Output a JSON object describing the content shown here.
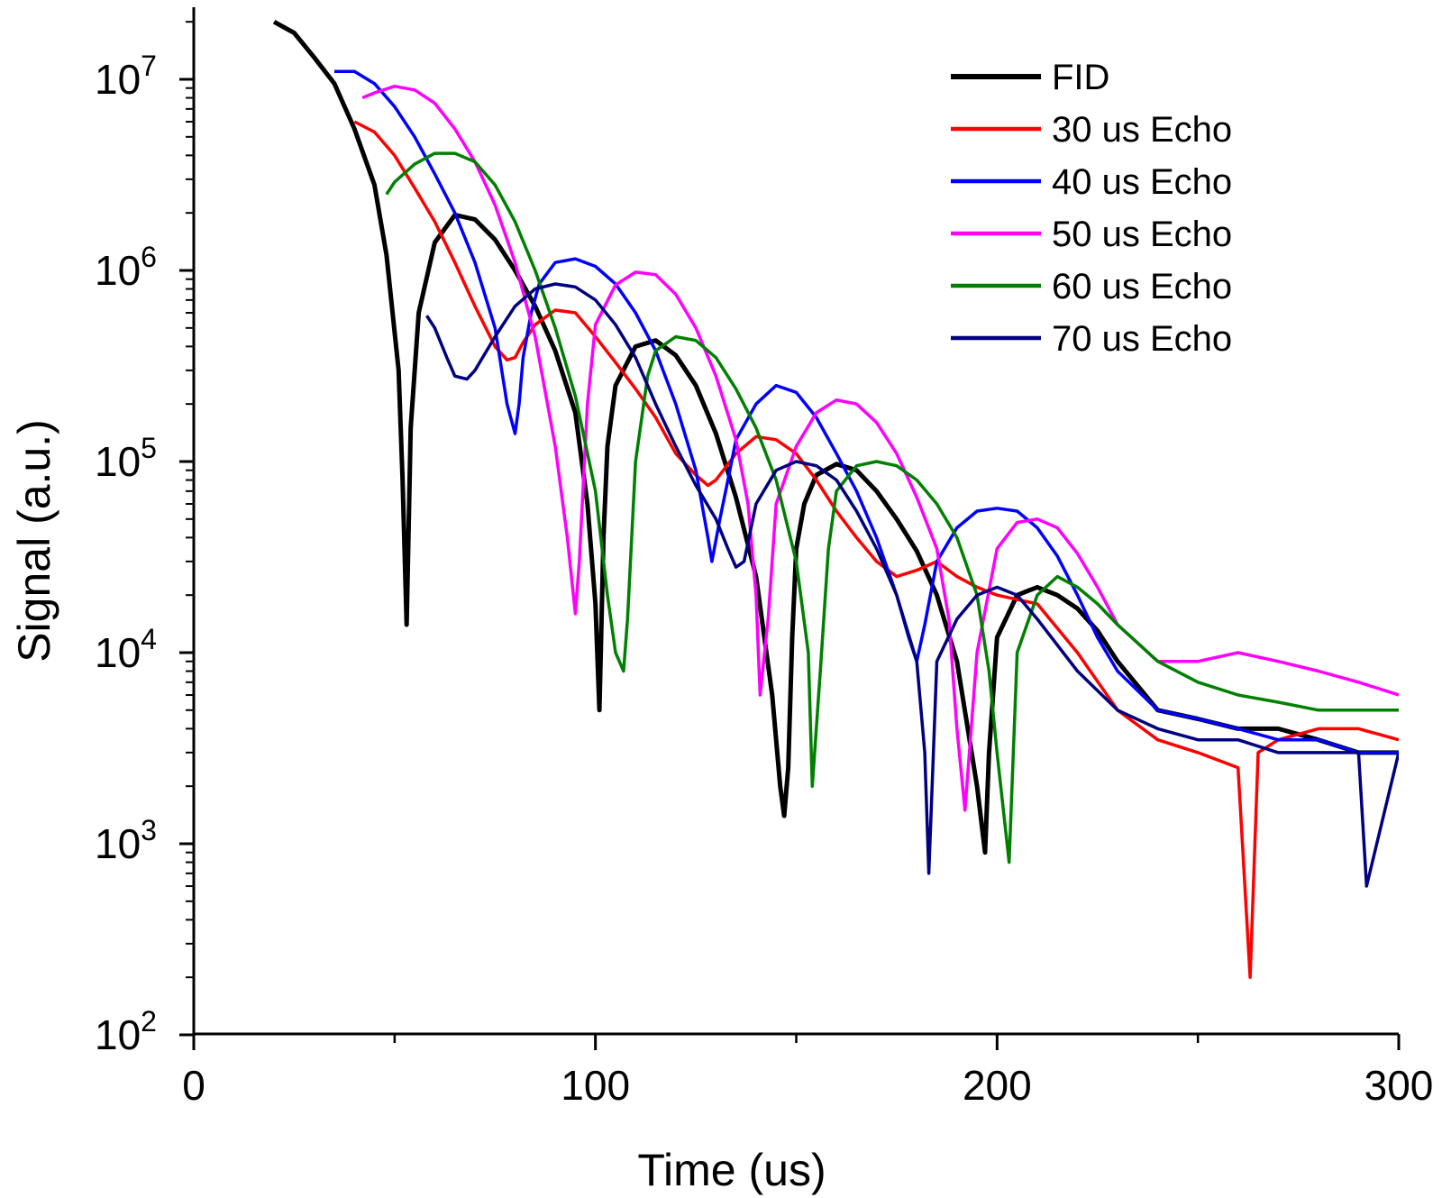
{
  "chart_data": {
    "type": "line",
    "title": "",
    "xlabel": "Time (us)",
    "ylabel": "Signal (a.u.)",
    "xlim": [
      0,
      300
    ],
    "ylim": [
      100,
      30000000
    ],
    "yscale": "log",
    "x_ticks": [
      0,
      100,
      200,
      300
    ],
    "x_tick_labels": [
      "0",
      "100",
      "200",
      "300"
    ],
    "y_ticks": [
      100,
      1000,
      10000,
      100000,
      1000000,
      10000000
    ],
    "y_tick_base": "10",
    "y_tick_exponents": [
      "2",
      "3",
      "4",
      "5",
      "6",
      "7"
    ],
    "grid": false,
    "legend_position": "top-right",
    "series": [
      {
        "name": "FID",
        "color": "#000000",
        "x": [
          20,
          25,
          30,
          35,
          40,
          45,
          48,
          51,
          52,
          53,
          54,
          56,
          60,
          65,
          70,
          75,
          80,
          85,
          90,
          95,
          98,
          100,
          101,
          102,
          103,
          105,
          110,
          115,
          120,
          125,
          130,
          135,
          140,
          144,
          146,
          147,
          148,
          149,
          150,
          152,
          155,
          160,
          165,
          170,
          175,
          180,
          185,
          190,
          195,
          197,
          198,
          200,
          205,
          210,
          215,
          220,
          225,
          230,
          240,
          250,
          260,
          270,
          280,
          290,
          300
        ],
        "y": [
          20000000,
          17500000,
          13000000,
          9500000,
          5500000,
          2800000,
          1200000,
          300000,
          80000,
          14000,
          150000,
          600000,
          1400000,
          1950000,
          1850000,
          1450000,
          1000000,
          650000,
          380000,
          180000,
          60000,
          18000,
          5000,
          40000,
          120000,
          250000,
          400000,
          430000,
          360000,
          250000,
          140000,
          65000,
          25000,
          6000,
          2000,
          1400,
          2500,
          12000,
          35000,
          60000,
          85000,
          97000,
          90000,
          70000,
          50000,
          34000,
          20000,
          9000,
          2000,
          900,
          3000,
          12000,
          20000,
          22000,
          20000,
          17000,
          13000,
          9000,
          5000,
          4500,
          4000,
          4000,
          3500,
          3000,
          3000
        ]
      },
      {
        "name": "30 us Echo",
        "color": "#ff0000",
        "x": [
          40,
          45,
          50,
          55,
          60,
          65,
          70,
          75,
          78,
          80,
          82,
          85,
          90,
          95,
          100,
          105,
          110,
          115,
          120,
          125,
          128,
          130,
          135,
          140,
          145,
          150,
          155,
          160,
          165,
          170,
          175,
          180,
          185,
          190,
          195,
          200,
          210,
          220,
          230,
          240,
          250,
          260,
          263,
          265,
          270,
          280,
          290,
          300
        ],
        "y": [
          6000000,
          5300000,
          4000000,
          2700000,
          1800000,
          1100000,
          650000,
          400000,
          340000,
          350000,
          420000,
          520000,
          620000,
          600000,
          450000,
          330000,
          240000,
          170000,
          110000,
          85000,
          75000,
          80000,
          110000,
          135000,
          130000,
          110000,
          80000,
          55000,
          40000,
          30000,
          25000,
          27000,
          30000,
          25000,
          22000,
          20000,
          18000,
          10000,
          5000,
          3500,
          3000,
          2500,
          200,
          3000,
          3500,
          4000,
          4000,
          3500
        ]
      },
      {
        "name": "40 us Echo",
        "color": "#0000ff",
        "x": [
          35,
          40,
          45,
          50,
          55,
          60,
          65,
          70,
          75,
          78,
          80,
          81,
          82,
          84,
          86,
          90,
          95,
          100,
          105,
          110,
          115,
          120,
          125,
          128,
          129,
          131,
          133,
          135,
          140,
          145,
          150,
          155,
          160,
          165,
          170,
          175,
          178,
          180,
          182,
          185,
          190,
          195,
          200,
          205,
          210,
          215,
          220,
          225,
          230,
          240,
          250,
          260,
          270,
          280,
          290,
          300
        ],
        "y": [
          11000000,
          11000000,
          9500000,
          7200000,
          5000000,
          3200000,
          2000000,
          1100000,
          500000,
          200000,
          140000,
          200000,
          350000,
          600000,
          850000,
          1100000,
          1150000,
          1050000,
          850000,
          600000,
          380000,
          200000,
          90000,
          40000,
          30000,
          50000,
          80000,
          130000,
          200000,
          250000,
          230000,
          170000,
          110000,
          70000,
          40000,
          20000,
          12000,
          9000,
          14000,
          30000,
          45000,
          55000,
          57000,
          55000,
          45000,
          32000,
          20000,
          12000,
          8000,
          5000,
          4500,
          4000,
          3500,
          3500,
          3000,
          3000
        ]
      },
      {
        "name": "50 us Echo",
        "color": "#ff00ff",
        "x": [
          42,
          45,
          50,
          55,
          60,
          65,
          70,
          75,
          80,
          85,
          90,
          93,
          95,
          96,
          98,
          100,
          105,
          110,
          115,
          120,
          125,
          130,
          135,
          138,
          140,
          141,
          143,
          145,
          150,
          155,
          160,
          165,
          170,
          175,
          180,
          185,
          188,
          190,
          192,
          195,
          200,
          205,
          210,
          215,
          220,
          225,
          230,
          240,
          250,
          260,
          270,
          280,
          290,
          300
        ],
        "y": [
          8000000,
          8500000,
          9200000,
          8800000,
          7500000,
          5500000,
          3700000,
          2200000,
          1100000,
          450000,
          120000,
          40000,
          16000,
          30000,
          200000,
          520000,
          840000,
          980000,
          950000,
          750000,
          500000,
          280000,
          130000,
          60000,
          20000,
          6000,
          15000,
          60000,
          120000,
          180000,
          210000,
          200000,
          160000,
          110000,
          65000,
          35000,
          15000,
          4000,
          1500,
          10000,
          35000,
          48000,
          50000,
          45000,
          33000,
          22000,
          14000,
          9000,
          9000,
          10000,
          9000,
          8000,
          7000,
          6000
        ]
      },
      {
        "name": "60 us Echo",
        "color": "#008000",
        "x": [
          48,
          50,
          55,
          60,
          65,
          70,
          75,
          80,
          85,
          90,
          95,
          100,
          103,
          105,
          107,
          108,
          110,
          113,
          115,
          120,
          125,
          130,
          135,
          140,
          145,
          150,
          153,
          154,
          156,
          158,
          160,
          165,
          170,
          175,
          180,
          185,
          190,
          195,
          198,
          200,
          203,
          205,
          210,
          215,
          220,
          225,
          230,
          240,
          250,
          260,
          270,
          280,
          290,
          300
        ],
        "y": [
          2500000,
          2900000,
          3600000,
          4100000,
          4100000,
          3700000,
          2800000,
          1800000,
          1000000,
          500000,
          220000,
          70000,
          20000,
          10000,
          8000,
          15000,
          100000,
          280000,
          380000,
          450000,
          430000,
          350000,
          240000,
          150000,
          80000,
          30000,
          10000,
          2000,
          8000,
          35000,
          70000,
          95000,
          100000,
          95000,
          80000,
          60000,
          40000,
          20000,
          8000,
          3000,
          800,
          10000,
          20000,
          25000,
          22000,
          18000,
          14000,
          9000,
          7000,
          6000,
          5500,
          5000,
          5000,
          5000
        ]
      },
      {
        "name": "70 us Echo",
        "color": "#000080",
        "x": [
          58,
          60,
          63,
          65,
          68,
          70,
          75,
          80,
          85,
          90,
          95,
          100,
          105,
          110,
          115,
          120,
          125,
          130,
          133,
          135,
          137,
          140,
          145,
          150,
          155,
          160,
          165,
          170,
          175,
          180,
          182,
          183,
          185,
          190,
          195,
          200,
          205,
          210,
          220,
          230,
          240,
          250,
          260,
          270,
          280,
          290,
          292,
          300
        ],
        "y": [
          580000,
          500000,
          350000,
          280000,
          270000,
          300000,
          450000,
          650000,
          800000,
          850000,
          820000,
          700000,
          520000,
          350000,
          200000,
          120000,
          75000,
          50000,
          35000,
          28000,
          30000,
          60000,
          90000,
          100000,
          95000,
          80000,
          55000,
          35000,
          20000,
          9000,
          3000,
          700,
          9000,
          15000,
          20000,
          22000,
          20000,
          15000,
          8000,
          5000,
          4000,
          3500,
          3500,
          3000,
          3000,
          3000,
          600,
          3000
        ]
      }
    ]
  }
}
